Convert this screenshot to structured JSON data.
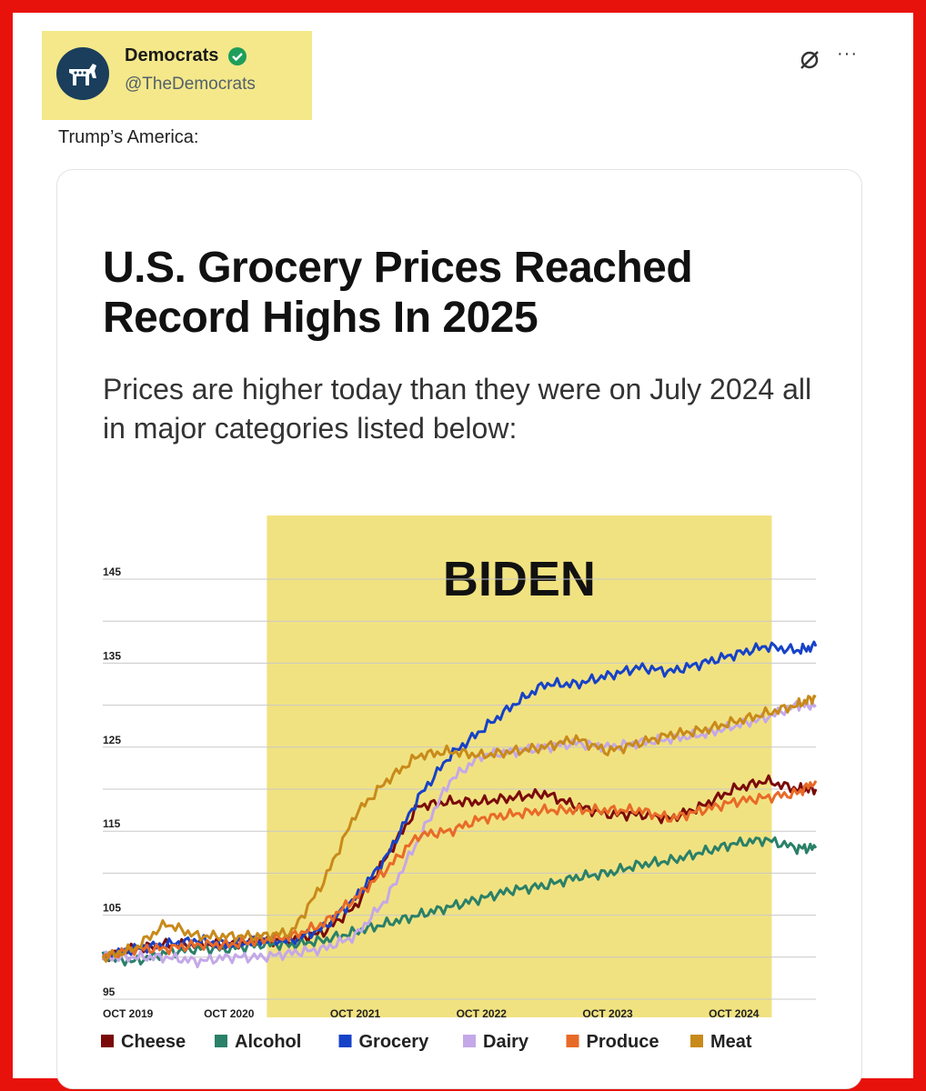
{
  "tweet": {
    "name": "Democrats",
    "handle": "@TheDemocrats",
    "text": "Trump’s America:",
    "icons": [
      "donkey-logo-icon",
      "verified-badge-icon",
      "grok-icon",
      "more-icon"
    ],
    "more_glyph": "···"
  },
  "chart_data": {
    "type": "line",
    "title": "U.S. Grocery Prices Reached Record Highs In 2025",
    "subtitle": "Prices are higher today than they were on July 2024 all in major categories listed below:",
    "annotation": {
      "label": "BIDEN",
      "x_start": 2021.05,
      "x_end": 2025.05
    },
    "x_range": [
      2019.75,
      2025.4
    ],
    "ylim": [
      95,
      145
    ],
    "yticks": [
      95,
      105,
      115,
      125,
      135,
      145
    ],
    "xticks": [
      {
        "value": 2019.75,
        "label": "OCT 2019"
      },
      {
        "value": 2020.75,
        "label": "OCT 2020"
      },
      {
        "value": 2021.75,
        "label": "OCT 2021"
      },
      {
        "value": 2022.75,
        "label": "OCT 2022"
      },
      {
        "value": 2023.75,
        "label": "OCT 2023"
      },
      {
        "value": 2024.75,
        "label": "OCT 2024"
      }
    ],
    "grid": true,
    "legend_position": "bottom",
    "x": [
      2019.75,
      2020.0,
      2020.25,
      2020.5,
      2020.75,
      2021.0,
      2021.25,
      2021.5,
      2021.75,
      2022.0,
      2022.25,
      2022.5,
      2022.75,
      2023.0,
      2023.25,
      2023.5,
      2023.75,
      2024.0,
      2024.25,
      2024.5,
      2024.75,
      2025.0,
      2025.25,
      2025.4
    ],
    "series": [
      {
        "name": "Cheese",
        "color": "#7a0a0a",
        "values": [
          100,
          101,
          101.5,
          101.5,
          101.5,
          102,
          102,
          103,
          106,
          112,
          118,
          118.5,
          118.5,
          119,
          119.5,
          118,
          117,
          117,
          116.5,
          118,
          120,
          121,
          120,
          120
        ]
      },
      {
        "name": "Alcohol",
        "color": "#2a8068",
        "values": [
          100,
          99.5,
          100.5,
          101,
          101,
          101.5,
          101.5,
          102,
          103,
          104,
          105,
          106,
          107,
          108,
          108.5,
          109.5,
          110,
          111,
          111.5,
          112.5,
          113.5,
          114,
          113,
          113
        ]
      },
      {
        "name": "Grocery",
        "color": "#1642c8",
        "values": [
          100,
          101,
          101.5,
          102,
          101.5,
          102,
          102,
          103.5,
          107,
          112,
          119,
          124,
          127,
          130,
          132.5,
          132.5,
          133.5,
          134.5,
          134,
          135,
          136,
          137,
          136.5,
          137
        ]
      },
      {
        "name": "Dairy",
        "color": "#c4a8e8",
        "values": [
          100,
          100,
          100,
          99.5,
          100,
          100,
          100.5,
          101,
          102.5,
          107,
          114,
          121,
          124,
          124.5,
          125,
          125.5,
          125,
          125.5,
          126,
          126.5,
          127.5,
          128.5,
          130,
          130
        ]
      },
      {
        "name": "Produce",
        "color": "#e86a28",
        "values": [
          100,
          101,
          101,
          101.5,
          101.5,
          102,
          102.5,
          104,
          107,
          110.5,
          114.5,
          115,
          116.5,
          117,
          117.5,
          117.5,
          117.5,
          117.5,
          116.5,
          117.5,
          118.5,
          119,
          119.5,
          121
        ]
      },
      {
        "name": "Meat",
        "color": "#c88a1a",
        "values": [
          100,
          101,
          104,
          102.5,
          102.5,
          102.5,
          103,
          109,
          117,
          121,
          124,
          124.5,
          124,
          124.5,
          125,
          126,
          124.5,
          125.5,
          126.5,
          127,
          128,
          129,
          130,
          131
        ]
      }
    ],
    "colors": {
      "highlight": "#f1e281",
      "frame": "#e8120c",
      "avatar": "#1a3e5c",
      "verified": "#1e9e5a"
    }
  }
}
